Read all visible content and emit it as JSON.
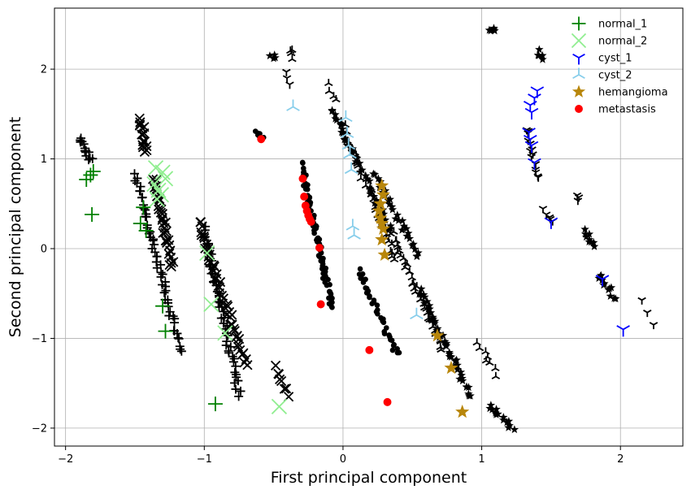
{
  "chart_data": {
    "type": "scatter",
    "xlabel": "First principal component",
    "ylabel": "Second principal component",
    "xlim": [
      -2.08,
      2.45
    ],
    "ylim": [
      -2.2,
      2.68
    ],
    "xticks": [
      {
        "v": -2,
        "label": "−2"
      },
      {
        "v": -1,
        "label": "−1"
      },
      {
        "v": 0,
        "label": "0"
      },
      {
        "v": 1,
        "label": "1"
      },
      {
        "v": 2,
        "label": "2"
      }
    ],
    "yticks": [
      {
        "v": -2,
        "label": "−2"
      },
      {
        "v": -1,
        "label": "−1"
      },
      {
        "v": 0,
        "label": "0"
      },
      {
        "v": 1,
        "label": "1"
      },
      {
        "v": 2,
        "label": "2"
      }
    ],
    "grid": true,
    "legend_position": "top-right",
    "colors": {
      "normal_1": "#008000",
      "normal_2": "#90ee90",
      "cyst_1": "#0000ff",
      "cyst_2": "#87ceeb",
      "hemangioma": "#b8860b",
      "metastasis": "#ff0000",
      "background_points": "#000000"
    },
    "series": [
      {
        "name": "normal_1",
        "marker": "plus",
        "points": [
          [
            -1.85,
            0.77
          ],
          [
            -1.82,
            0.82
          ],
          [
            -1.8,
            0.86
          ],
          [
            -1.81,
            0.38
          ],
          [
            -1.44,
            0.46
          ],
          [
            -1.46,
            0.28
          ],
          [
            -1.42,
            0.2
          ],
          [
            -1.3,
            -0.64
          ],
          [
            -1.28,
            -0.92
          ],
          [
            -0.92,
            -1.73
          ]
        ]
      },
      {
        "name": "normal_2",
        "marker": "x",
        "points": [
          [
            -1.35,
            0.9
          ],
          [
            -1.3,
            0.85
          ],
          [
            -1.28,
            0.78
          ],
          [
            -1.36,
            0.72
          ],
          [
            -1.33,
            0.65
          ],
          [
            -1.31,
            0.6
          ],
          [
            -1.34,
            0.55
          ],
          [
            -0.98,
            -0.05
          ],
          [
            -0.95,
            -0.62
          ],
          [
            -0.85,
            -0.94
          ],
          [
            -0.46,
            -1.76
          ]
        ]
      },
      {
        "name": "cyst_1",
        "marker": "tri_down",
        "points": [
          [
            1.35,
            1.6
          ],
          [
            1.38,
            1.68
          ],
          [
            1.4,
            1.76
          ],
          [
            1.36,
            1.52
          ],
          [
            1.34,
            1.3
          ],
          [
            1.35,
            1.22
          ],
          [
            1.36,
            1.15
          ],
          [
            1.38,
            0.96
          ],
          [
            1.5,
            0.3
          ],
          [
            1.87,
            -0.34
          ],
          [
            2.02,
            -0.9
          ]
        ]
      },
      {
        "name": "cyst_2",
        "marker": "tri_up",
        "points": [
          [
            -0.36,
            1.58
          ],
          [
            0.02,
            1.46
          ],
          [
            0.03,
            1.28
          ],
          [
            0.04,
            1.15
          ],
          [
            0.05,
            1.05
          ],
          [
            0.06,
            0.88
          ],
          [
            0.07,
            0.25
          ],
          [
            0.08,
            0.15
          ],
          [
            0.53,
            -0.74
          ]
        ]
      },
      {
        "name": "hemangioma",
        "marker": "star",
        "points": [
          [
            0.28,
            0.7
          ],
          [
            0.29,
            0.6
          ],
          [
            0.27,
            0.5
          ],
          [
            0.26,
            0.42
          ],
          [
            0.27,
            0.34
          ],
          [
            0.28,
            0.28
          ],
          [
            0.29,
            0.22
          ],
          [
            0.28,
            0.1
          ],
          [
            0.3,
            -0.07
          ],
          [
            0.68,
            -0.97
          ],
          [
            0.78,
            -1.33
          ],
          [
            0.86,
            -1.82
          ]
        ]
      },
      {
        "name": "metastasis",
        "marker": "circle",
        "points": [
          [
            -0.59,
            1.22
          ],
          [
            -0.29,
            0.78
          ],
          [
            -0.28,
            0.58
          ],
          [
            -0.27,
            0.48
          ],
          [
            -0.26,
            0.42
          ],
          [
            -0.25,
            0.37
          ],
          [
            -0.24,
            0.33
          ],
          [
            -0.23,
            0.3
          ],
          [
            -0.17,
            0.01
          ],
          [
            -0.16,
            -0.62
          ],
          [
            0.19,
            -1.13
          ],
          [
            0.32,
            -1.71
          ]
        ]
      }
    ],
    "background_clusters": [
      {
        "marker": "plus",
        "from": [
          -1.9,
          1.22
        ],
        "to": [
          -1.82,
          0.98
        ],
        "n": 14
      },
      {
        "marker": "plus",
        "from": [
          -1.5,
          0.84
        ],
        "to": [
          -1.17,
          -1.14
        ],
        "n": 55
      },
      {
        "marker": "x",
        "from": [
          -1.46,
          1.44
        ],
        "to": [
          -1.42,
          1.08
        ],
        "n": 16
      },
      {
        "marker": "x",
        "from": [
          -1.36,
          0.78
        ],
        "to": [
          -1.23,
          -0.22
        ],
        "n": 36
      },
      {
        "marker": "plus",
        "from": [
          -1.0,
          0.22
        ],
        "to": [
          -0.75,
          -1.62
        ],
        "n": 50
      },
      {
        "marker": "x",
        "from": [
          -1.04,
          0.3
        ],
        "to": [
          -0.7,
          -1.3
        ],
        "n": 48
      },
      {
        "marker": "x",
        "from": [
          -0.5,
          -1.33
        ],
        "to": [
          -0.38,
          -1.62
        ],
        "n": 8
      },
      {
        "marker": "circle",
        "from": [
          -0.64,
          1.32
        ],
        "to": [
          -0.58,
          1.24
        ],
        "n": 6
      },
      {
        "marker": "circle",
        "from": [
          -0.3,
          0.95
        ],
        "to": [
          -0.08,
          -0.67
        ],
        "n": 75
      },
      {
        "marker": "circle",
        "from": [
          0.11,
          -0.24
        ],
        "to": [
          0.39,
          -1.18
        ],
        "n": 38
      },
      {
        "marker": "tri_up",
        "from": [
          -0.38,
          2.2
        ],
        "to": [
          -0.38,
          2.14
        ],
        "n": 4
      },
      {
        "marker": "star",
        "from": [
          -0.51,
          2.15
        ],
        "to": [
          -0.48,
          2.14
        ],
        "n": 4
      },
      {
        "marker": "tri_down",
        "from": [
          -0.4,
          1.95
        ],
        "to": [
          -0.38,
          1.85
        ],
        "n": 3
      },
      {
        "marker": "tri_up",
        "from": [
          -0.1,
          1.83
        ],
        "to": [
          -0.05,
          1.65
        ],
        "n": 4
      },
      {
        "marker": "star",
        "from": [
          -0.08,
          1.56
        ],
        "to": [
          0.35,
          0.2
        ],
        "n": 42
      },
      {
        "marker": "star",
        "from": [
          0.22,
          0.85
        ],
        "to": [
          0.55,
          -0.1
        ],
        "n": 30
      },
      {
        "marker": "tri_up",
        "from": [
          0.0,
          1.4
        ],
        "to": [
          0.38,
          -0.15
        ],
        "n": 35
      },
      {
        "marker": "tri_up",
        "from": [
          0.35,
          0.18
        ],
        "to": [
          0.72,
          -1.12
        ],
        "n": 40
      },
      {
        "marker": "star",
        "from": [
          0.55,
          -0.45
        ],
        "to": [
          0.92,
          -1.65
        ],
        "n": 45
      },
      {
        "marker": "star",
        "from": [
          1.05,
          -1.75
        ],
        "to": [
          1.22,
          -2.0
        ],
        "n": 14
      },
      {
        "marker": "tri_up",
        "from": [
          0.98,
          -1.05
        ],
        "to": [
          1.1,
          -1.4
        ],
        "n": 8
      },
      {
        "marker": "star",
        "from": [
          1.07,
          2.46
        ],
        "to": [
          1.11,
          2.42
        ],
        "n": 5
      },
      {
        "marker": "star",
        "from": [
          1.4,
          2.2
        ],
        "to": [
          1.43,
          2.12
        ],
        "n": 5
      },
      {
        "marker": "tri_down",
        "from": [
          1.33,
          1.35
        ],
        "to": [
          1.4,
          0.78
        ],
        "n": 14
      },
      {
        "marker": "tri_down",
        "from": [
          1.45,
          0.45
        ],
        "to": [
          1.5,
          0.28
        ],
        "n": 5
      },
      {
        "marker": "tri_down",
        "from": [
          1.7,
          0.6
        ],
        "to": [
          1.7,
          0.52
        ],
        "n": 3
      },
      {
        "marker": "star",
        "from": [
          1.74,
          0.2
        ],
        "to": [
          1.8,
          0.03
        ],
        "n": 9
      },
      {
        "marker": "star",
        "from": [
          1.85,
          -0.28
        ],
        "to": [
          1.96,
          -0.55
        ],
        "n": 12
      },
      {
        "marker": "tri_down",
        "from": [
          2.17,
          -0.6
        ],
        "to": [
          2.25,
          -0.82
        ],
        "n": 3
      }
    ]
  }
}
